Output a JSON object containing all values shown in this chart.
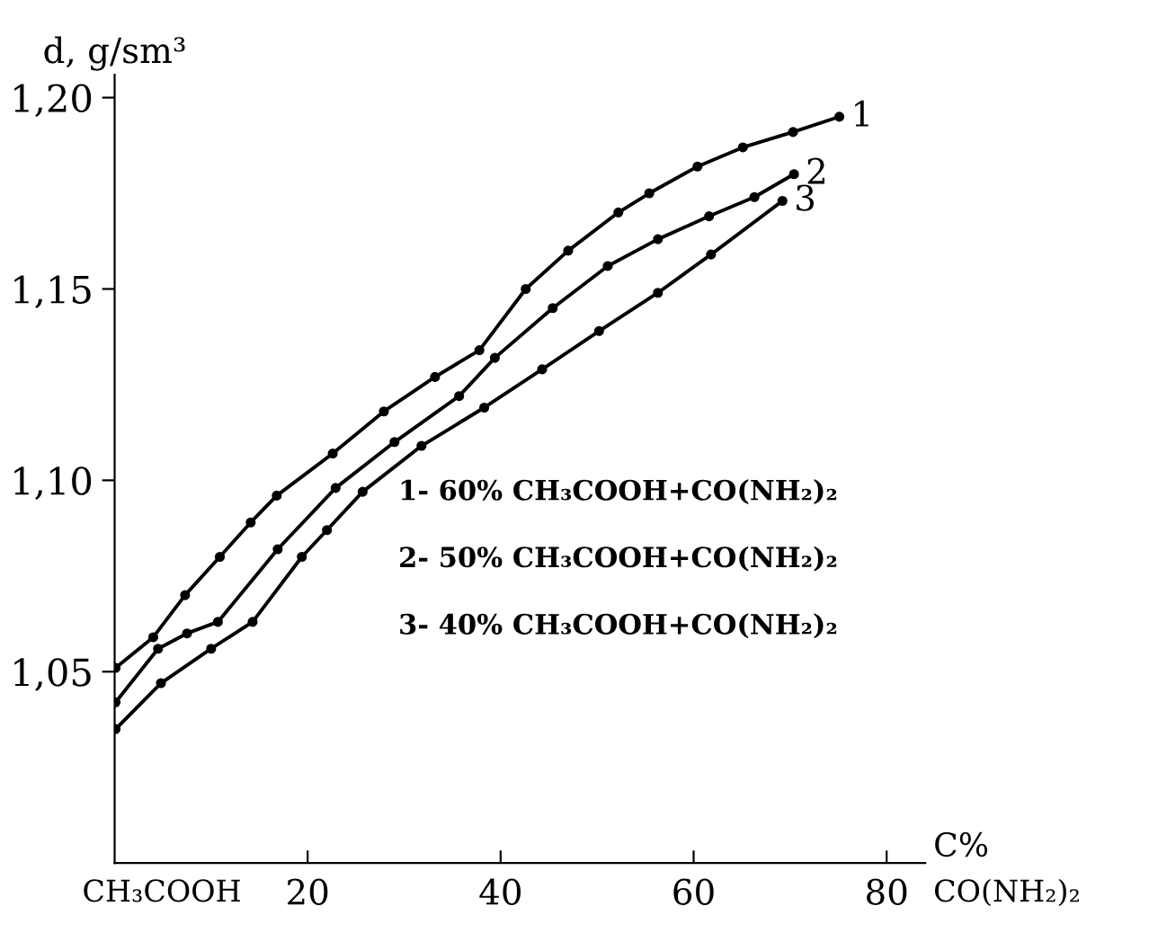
{
  "chart_data": {
    "type": "line",
    "ylabel": "d, g/sm³",
    "xlabel": "C%",
    "xlim": [
      0,
      84
    ],
    "xticks": [
      20,
      40,
      60,
      80
    ],
    "ylim": [
      1.0,
      1.206
    ],
    "yticks": [
      {
        "value": 1.05,
        "label": "1,05"
      },
      {
        "value": 1.1,
        "label": "1,10"
      },
      {
        "value": 1.15,
        "label": "1,15"
      },
      {
        "value": 1.2,
        "label": "1,20"
      }
    ],
    "marker": "circle",
    "line_style": "solid",
    "grid": false,
    "legend": false,
    "annotations": [
      "CH₃COOH",
      "CO(NH₂)₂",
      "1- 60% CH₃COOH+CO(NH₂)₂",
      "2- 50% CH₃COOH+CO(NH₂)₂",
      "3- 40% CH₃COOH+CO(NH₂)₂"
    ],
    "series": [
      {
        "name": "1",
        "color": "#000000",
        "x": [
          0.1,
          4.0,
          7.3,
          10.9,
          14.1,
          16.8,
          22.6,
          27.9,
          33.2,
          37.8,
          42.6,
          47.0,
          52.2,
          55.4,
          60.4,
          65.1,
          70.3,
          75.1
        ],
        "values": [
          1.051,
          1.059,
          1.07,
          1.08,
          1.089,
          1.096,
          1.107,
          1.118,
          1.127,
          1.134,
          1.15,
          1.16,
          1.17,
          1.175,
          1.182,
          1.187,
          1.191,
          1.195
        ]
      },
      {
        "name": "2",
        "color": "#000000",
        "x": [
          0.1,
          4.5,
          7.5,
          10.7,
          16.9,
          22.9,
          29.0,
          35.7,
          39.4,
          45.4,
          51.1,
          56.3,
          61.6,
          66.3,
          70.4
        ],
        "values": [
          1.042,
          1.056,
          1.06,
          1.063,
          1.082,
          1.098,
          1.11,
          1.122,
          1.132,
          1.145,
          1.156,
          1.163,
          1.169,
          1.174,
          1.18
        ]
      },
      {
        "name": "3",
        "color": "#000000",
        "x": [
          0.1,
          4.8,
          10.0,
          14.3,
          19.4,
          22.0,
          25.7,
          31.8,
          38.3,
          44.3,
          50.2,
          56.3,
          61.8,
          69.2
        ],
        "values": [
          1.035,
          1.047,
          1.056,
          1.063,
          1.08,
          1.087,
          1.097,
          1.109,
          1.119,
          1.129,
          1.139,
          1.149,
          1.159,
          1.173
        ]
      }
    ]
  }
}
